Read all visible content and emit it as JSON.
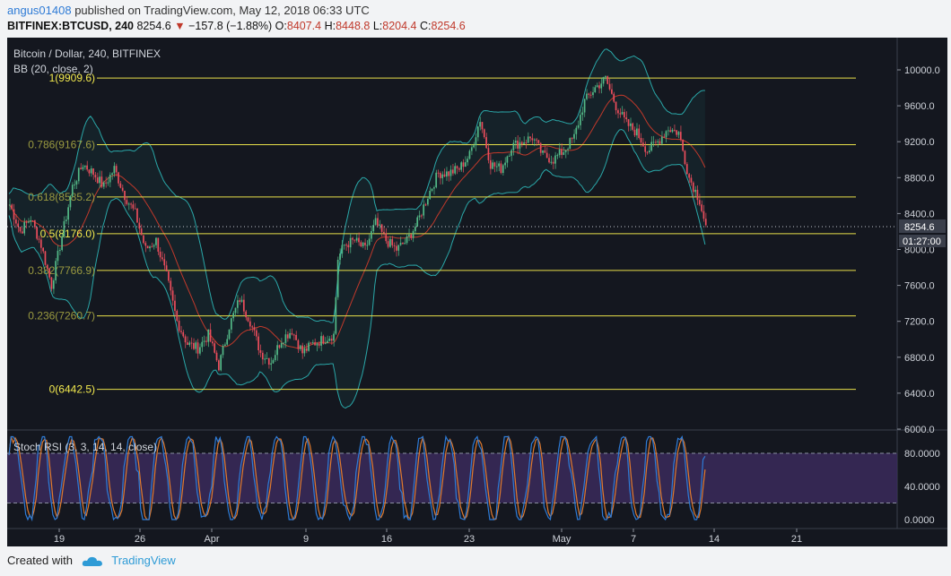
{
  "header": {
    "author": "angus01408",
    "published_text": "published on TradingView.com, May 12, 2018 06:33 UTC",
    "symbol": "BITFINEX:BTCUSD, 240",
    "last_price": "8254.6",
    "change_arrow": "▼",
    "change": "−157.8 (−1.88%)",
    "open_label": "O:",
    "open": "8407.4",
    "high_label": "H:",
    "high": "8448.8",
    "low_label": "L:",
    "low": "8204.4",
    "close_label": "C:",
    "close": "8254.6"
  },
  "legend": {
    "title": "Bitcoin / Dollar, 240, BITFINEX",
    "bb": "BB (20, close, 2)",
    "stoch": "Stoch RSI (3, 3, 14, 14, close)"
  },
  "footer": {
    "created_with": "Created with",
    "brand": "TradingView"
  },
  "colors": {
    "background": "#14171f",
    "up": "#53b987",
    "down": "#eb4d5c",
    "fib": "#e8e04a",
    "bb_band": "#2aa7a8",
    "bb_basis": "#c0392b",
    "stoch_k": "#2e7bd6",
    "stoch_d": "#e07a2e",
    "rsi_band": "#3a2a5c"
  },
  "chart_data": [
    {
      "type": "candlestick",
      "title": "Bitcoin / Dollar, 240, BITFINEX",
      "ylim": [
        6000,
        10200
      ],
      "y_ticks": [
        "10000.0",
        "9600.0",
        "9200.0",
        "8800.0",
        "8400.0",
        "8000.0",
        "7600.0",
        "7200.0",
        "6800.0",
        "6400.0",
        "6000.0"
      ],
      "x_ticks": [
        "19",
        "26",
        "Apr",
        "9",
        "16",
        "23",
        "May",
        "7",
        "14",
        "21"
      ],
      "last_price_label": "8254.6",
      "countdown_label": "01:27:00",
      "bollinger": "BB (20, close, 2)",
      "fib_levels": [
        {
          "label": "1(9909.6)",
          "value": 9909.6
        },
        {
          "label": "0.786(9167.6)",
          "value": 9167.6
        },
        {
          "label": "0.618(8585.2)",
          "value": 8585.2
        },
        {
          "label": "0.5(8176.0)",
          "value": 8176.0
        },
        {
          "label": "0.382(7766.9)",
          "value": 7766.9
        },
        {
          "label": "0.236(7260.7)",
          "value": 7260.7
        },
        {
          "label": "0(6442.5)",
          "value": 6442.5
        }
      ],
      "close_path": [
        [
          0,
          8500
        ],
        [
          5,
          8200
        ],
        [
          10,
          8350
        ],
        [
          15,
          8050
        ],
        [
          20,
          7600
        ],
        [
          25,
          8150
        ],
        [
          30,
          8700
        ],
        [
          35,
          8950
        ],
        [
          40,
          8850
        ],
        [
          45,
          8700
        ],
        [
          50,
          8900
        ],
        [
          55,
          8600
        ],
        [
          60,
          8400
        ],
        [
          65,
          8000
        ],
        [
          70,
          8100
        ],
        [
          75,
          7700
        ],
        [
          80,
          7200
        ],
        [
          85,
          6950
        ],
        [
          90,
          6900
        ],
        [
          95,
          7050
        ],
        [
          100,
          6700
        ],
        [
          105,
          7150
        ],
        [
          110,
          7450
        ],
        [
          115,
          7200
        ],
        [
          120,
          6850
        ],
        [
          125,
          6750
        ],
        [
          130,
          7000
        ],
        [
          135,
          7100
        ],
        [
          140,
          6850
        ],
        [
          145,
          6950
        ],
        [
          150,
          7000
        ],
        [
          155,
          7050
        ],
        [
          157,
          7900
        ],
        [
          160,
          8050
        ],
        [
          165,
          8100
        ],
        [
          170,
          8000
        ],
        [
          175,
          8300
        ],
        [
          180,
          8100
        ],
        [
          185,
          8000
        ],
        [
          190,
          8100
        ],
        [
          195,
          8300
        ],
        [
          200,
          8600
        ],
        [
          205,
          8850
        ],
        [
          210,
          8850
        ],
        [
          215,
          8900
        ],
        [
          220,
          9050
        ],
        [
          225,
          9450
        ],
        [
          230,
          8950
        ],
        [
          235,
          8900
        ],
        [
          240,
          9150
        ],
        [
          245,
          9200
        ],
        [
          250,
          9250
        ],
        [
          255,
          9050
        ],
        [
          260,
          9000
        ],
        [
          265,
          9100
        ],
        [
          270,
          9250
        ],
        [
          275,
          9650
        ],
        [
          280,
          9800
        ],
        [
          285,
          9900
        ],
        [
          290,
          9600
        ],
        [
          295,
          9400
        ],
        [
          300,
          9300
        ],
        [
          305,
          9100
        ],
        [
          310,
          9200
        ],
        [
          315,
          9350
        ],
        [
          320,
          9300
        ],
        [
          325,
          8800
        ],
        [
          330,
          8550
        ],
        [
          333,
          8250
        ]
      ],
      "stoch_rsi": {
        "levels": [
          "80.0000",
          "40.0000",
          "0.0000"
        ],
        "ylim": [
          0,
          100
        ],
        "upper_band": 80,
        "lower_band": 20
      }
    }
  ]
}
